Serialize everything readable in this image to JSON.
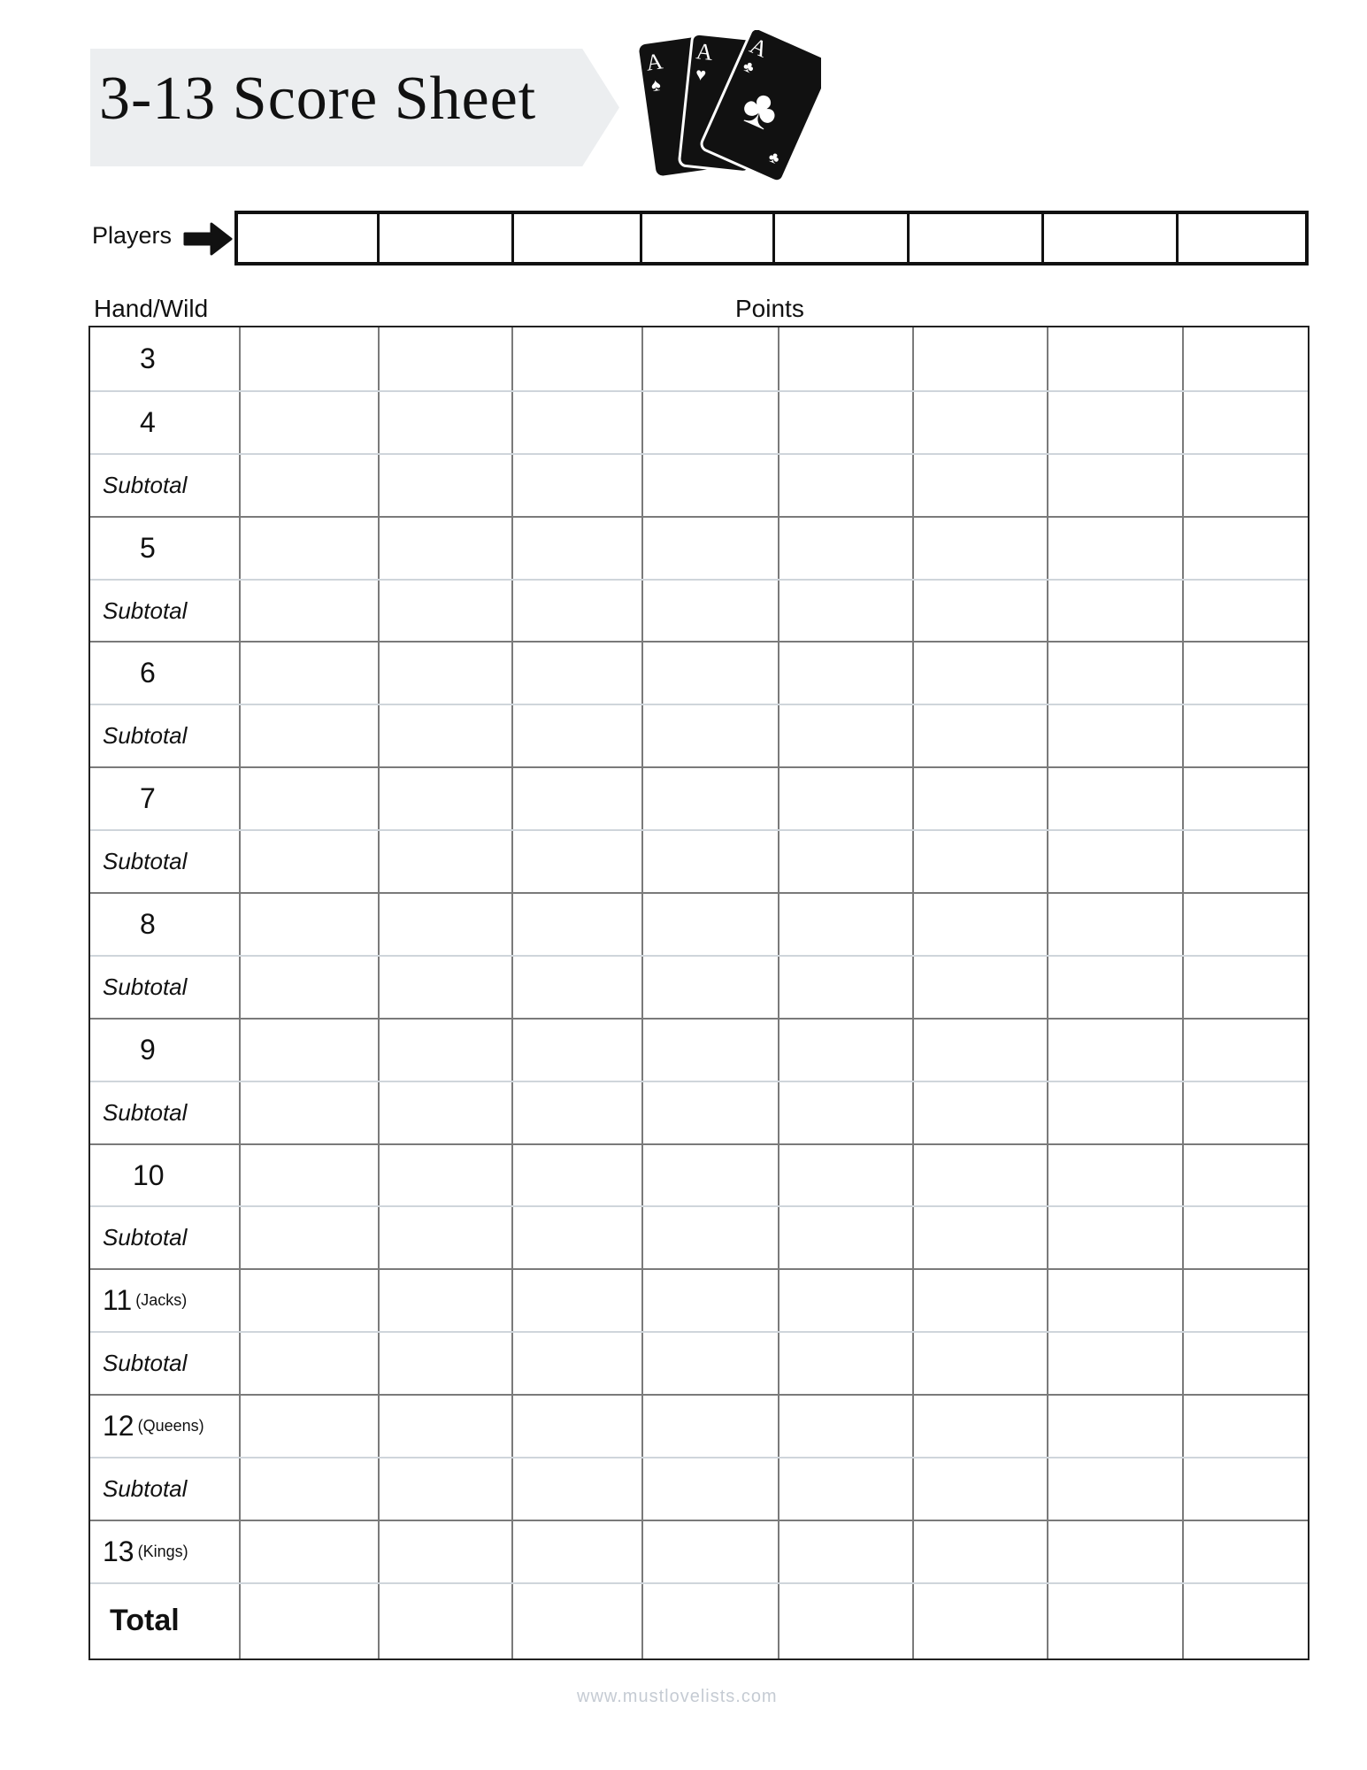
{
  "header": {
    "title": "3-13 Score Sheet",
    "icon": "playing-cards-aces-icon"
  },
  "players": {
    "label": "Players",
    "arrow_icon": "arrow-right-icon",
    "slots": 8
  },
  "table": {
    "hand_header": "Hand/Wild",
    "points_header": "Points",
    "player_columns": 8,
    "rows": [
      {
        "type": "hand",
        "num": "3",
        "wild": ""
      },
      {
        "type": "hand",
        "num": "4",
        "wild": ""
      },
      {
        "type": "subtotal",
        "label": "Subtotal"
      },
      {
        "type": "hand",
        "num": "5",
        "wild": ""
      },
      {
        "type": "subtotal",
        "label": "Subtotal"
      },
      {
        "type": "hand",
        "num": "6",
        "wild": ""
      },
      {
        "type": "subtotal",
        "label": "Subtotal"
      },
      {
        "type": "hand",
        "num": "7",
        "wild": ""
      },
      {
        "type": "subtotal",
        "label": "Subtotal"
      },
      {
        "type": "hand",
        "num": "8",
        "wild": ""
      },
      {
        "type": "subtotal",
        "label": "Subtotal"
      },
      {
        "type": "hand",
        "num": "9",
        "wild": ""
      },
      {
        "type": "subtotal",
        "label": "Subtotal"
      },
      {
        "type": "hand",
        "num": "10",
        "wild": ""
      },
      {
        "type": "subtotal",
        "label": "Subtotal"
      },
      {
        "type": "hand",
        "num": "11",
        "wild": "(Jacks)"
      },
      {
        "type": "subtotal",
        "label": "Subtotal"
      },
      {
        "type": "hand",
        "num": "12",
        "wild": "(Queens)"
      },
      {
        "type": "subtotal",
        "label": "Subtotal"
      },
      {
        "type": "hand",
        "num": "13",
        "wild": "(Kings)"
      },
      {
        "type": "total",
        "label": "Total"
      }
    ]
  },
  "footer": {
    "url": "www.mustlovelists.com"
  },
  "colors": {
    "banner": "#eceef0",
    "grid_dark": "#7a7a7a",
    "grid_light": "#cfd5db",
    "footer": "#c5cbd3"
  }
}
